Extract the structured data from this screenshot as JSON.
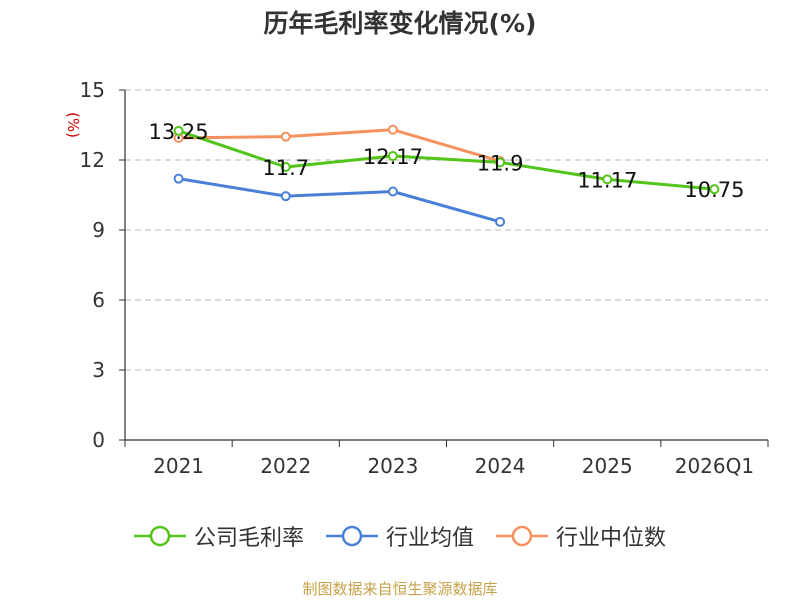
{
  "chart_data": {
    "type": "line",
    "title": "历年毛利率变化情况(%)",
    "ylabel": "(%)",
    "xlabel": "",
    "categories": [
      "2021",
      "2022",
      "2023",
      "2024",
      "2025",
      "2026Q1"
    ],
    "ylim": [
      0,
      15
    ],
    "yticks": [
      0,
      3,
      6,
      9,
      12,
      15
    ],
    "grid": true,
    "legend_position": "bottom",
    "series": [
      {
        "name": "公司毛利率",
        "color": "#52c41a",
        "values": [
          13.25,
          11.7,
          12.17,
          11.9,
          11.17,
          10.75
        ],
        "labels": [
          "13.25",
          "11.7",
          "12.17",
          "11.9",
          "11.17",
          "10.75"
        ]
      },
      {
        "name": "行业均值",
        "color": "#4a7fd8",
        "values": [
          11.2,
          10.45,
          10.65,
          9.35,
          null,
          null
        ]
      },
      {
        "name": "行业中位数",
        "color": "#f5915e",
        "values": [
          12.95,
          13.0,
          13.3,
          11.95,
          null,
          null
        ]
      }
    ]
  },
  "source": "制图数据来自恒生聚源数据库"
}
